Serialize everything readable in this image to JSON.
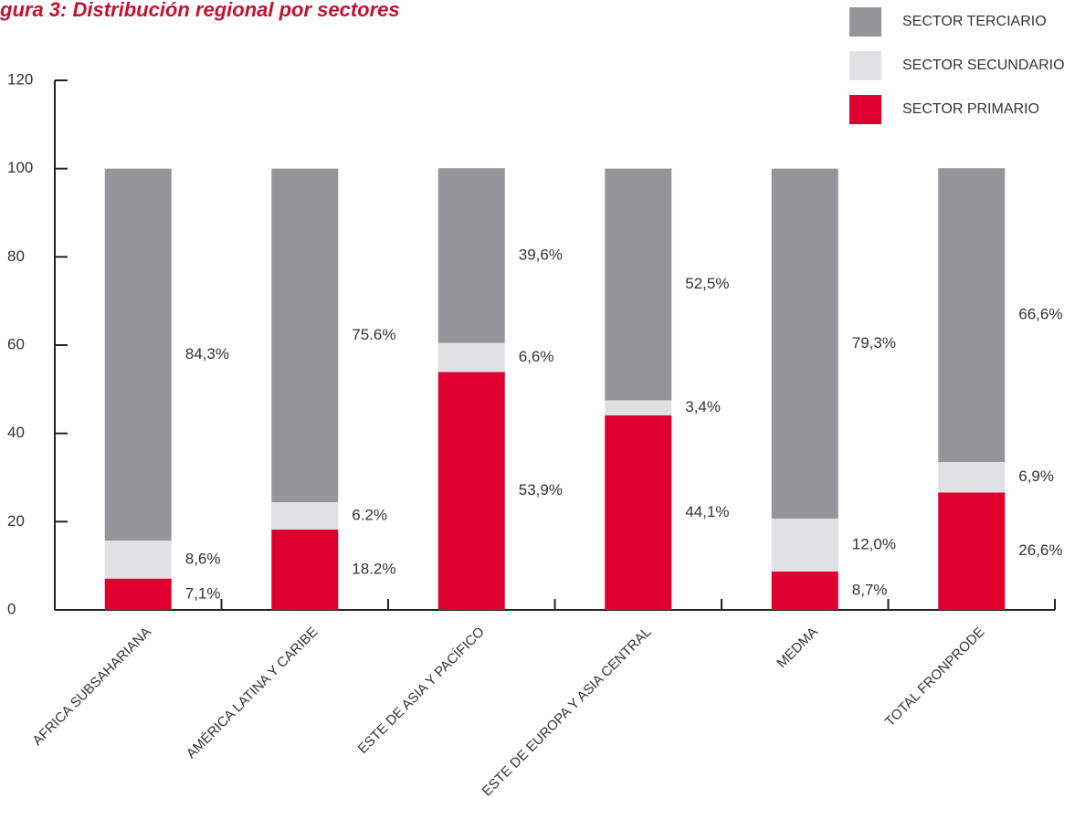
{
  "chart_data": {
    "type": "stacked_bar",
    "title": "gura 3: Distribución regional por sectores",
    "categories": [
      "AFRICA SUBSAHARIANA",
      "AMÉRICA LATINA Y CARIBE",
      "ESTE DE ASIA Y PACÍFICO",
      "ESTE DE EUROPA Y ASIA CENTRAL",
      "MEDMA",
      "TOTAL FRONPRODE"
    ],
    "series": [
      {
        "name": "SECTOR PRIMARIO",
        "color": "#e0002f",
        "values": [
          7.1,
          18.2,
          53.9,
          44.1,
          8.7,
          26.6
        ],
        "value_labels": [
          "7,1%",
          "18.2%",
          "53,9%",
          "44,1%",
          "8,7%",
          "26,6%"
        ]
      },
      {
        "name": "SECTOR SECUNDARIO",
        "color": "#e0e1e3",
        "values": [
          8.6,
          6.2,
          6.6,
          3.4,
          12.0,
          6.9
        ],
        "value_labels": [
          "8,6%",
          "6.2%",
          "6,6%",
          "3,4%",
          "12,0%",
          "6,9%"
        ]
      },
      {
        "name": "SECTOR TERCIARIO",
        "color": "#939598",
        "values": [
          84.3,
          75.6,
          39.6,
          52.5,
          79.3,
          66.6
        ],
        "value_labels": [
          "84,3%",
          "75.6%",
          "39,6%",
          "52,5%",
          "79,3%",
          "66,6%"
        ]
      }
    ],
    "ylim": [
      0,
      120
    ],
    "yticks": [
      0,
      20,
      40,
      60,
      80,
      100,
      120
    ]
  }
}
